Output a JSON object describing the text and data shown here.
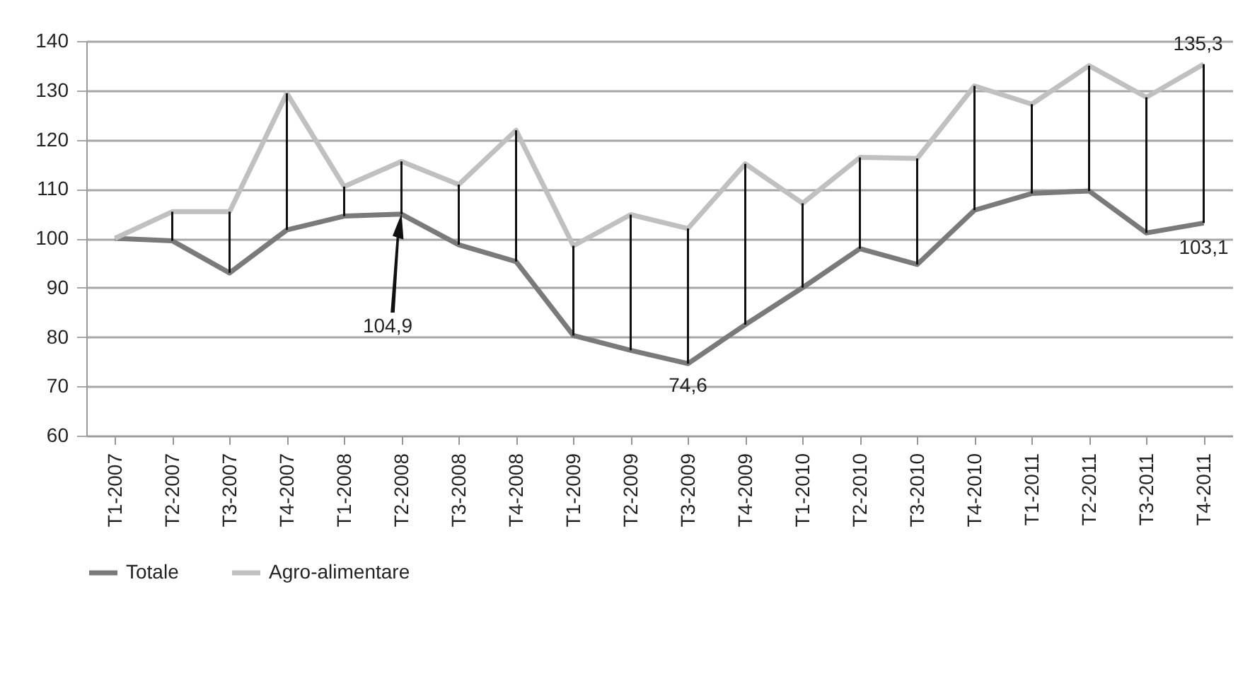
{
  "chart_data": {
    "type": "line",
    "categories": [
      "T1-2007",
      "T2-2007",
      "T3-2007",
      "T4-2007",
      "T1-2008",
      "T2-2008",
      "T3-2008",
      "T4-2008",
      "T1-2009",
      "T2-2009",
      "T3-2009",
      "T4-2009",
      "T1-2010",
      "T2-2010",
      "T3-2010",
      "T4-2010",
      "T1-2011",
      "T2-2011",
      "T3-2011",
      "T4-2011"
    ],
    "series": [
      {
        "name": "Totale",
        "color": "#7a7a7a",
        "values": [
          100,
          99.5,
          93,
          101.7,
          104.5,
          104.9,
          98.7,
          95.3,
          80.3,
          77.3,
          74.6,
          82.5,
          90,
          97.9,
          94.7,
          105.7,
          109.1,
          109.6,
          101.1,
          103.1
        ],
        "errors": [
          null,
          [
            99.5,
            105.4
          ],
          [
            93,
            105.4
          ],
          [
            101.7,
            129.4
          ],
          [
            104.5,
            110.5
          ],
          [
            104.9,
            115.6
          ],
          [
            98.7,
            110.9
          ],
          [
            95.3,
            121.9
          ],
          [
            80.3,
            98.5
          ],
          [
            77.3,
            104.8
          ],
          [
            74.6,
            102
          ],
          [
            82.5,
            115.1
          ],
          [
            90,
            107.1
          ],
          [
            97.9,
            116.4
          ],
          [
            94.7,
            116.2
          ],
          [
            105.7,
            130.9
          ],
          [
            109.1,
            127.2
          ],
          [
            109.6,
            135
          ],
          [
            101.1,
            128.6
          ],
          [
            103.1,
            135.3
          ]
        ]
      },
      {
        "name": "Agro-alimentare",
        "color": "#c0c0c0",
        "values": [
          100,
          105.4,
          105.4,
          129.4,
          110.5,
          115.6,
          110.9,
          121.9,
          98.5,
          104.8,
          102,
          115.1,
          107.1,
          116.4,
          116.2,
          130.9,
          127.2,
          135,
          128.6,
          135.3
        ]
      }
    ],
    "ylim": [
      60,
      140
    ],
    "yticks": [
      60,
      70,
      80,
      90,
      100,
      110,
      120,
      130,
      140
    ],
    "grid": "y",
    "legend": "bottom",
    "marker": "none",
    "line_style": "solid",
    "annotations": [
      "104,9",
      {
        "text": "74,6",
        "x": "T3-2009",
        "y": 74.6
      },
      {
        "text": "135,3",
        "x": "T4-2011",
        "y": 135.3
      },
      {
        "text": "103,1",
        "x": "T4-2011",
        "y": 103.1
      }
    ]
  }
}
